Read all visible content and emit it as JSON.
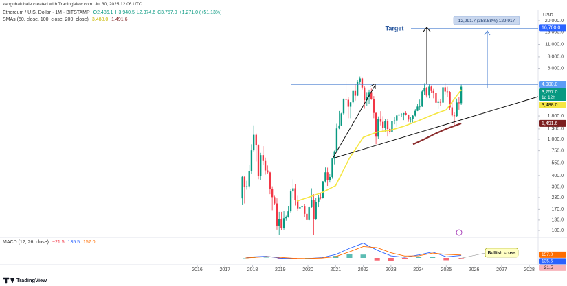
{
  "header": {
    "credit": "kanguhalubale created with TradingView.com, Jul 30, 2025 12:06 UTC"
  },
  "chart_data": {
    "type": "candlestick",
    "title": "Ethereum / U.S. Dollar · 1M · BITSTAMP",
    "ohlc_legend": [
      "O2,486.1",
      "H3,940.5",
      "L2,374.6",
      "C3,757.0",
      "+1,271.0 (+51.13%)"
    ],
    "currency": "USD",
    "log_scale": true,
    "xlim": [
      2008.87,
      2028.32
    ],
    "xticks": [
      2016,
      2017,
      2018,
      2019,
      2020,
      2021,
      2022,
      2023,
      2024,
      2025,
      2026,
      2027,
      2028
    ],
    "ylim": [
      85.6,
      23770
    ],
    "yticks": [
      {
        "value": 20000,
        "label": "20,000.0"
      },
      {
        "value": 15000,
        "label": "15,000.0"
      },
      {
        "value": 11000,
        "label": "11,000.0"
      },
      {
        "value": 8000,
        "label": "8,000.0"
      },
      {
        "value": 6000,
        "label": "6,000.0"
      },
      {
        "value": 1800,
        "label": "1,800.0"
      },
      {
        "value": 1300,
        "label": "1,300.0"
      },
      {
        "value": 1000,
        "label": "1,000.0"
      },
      {
        "value": 750,
        "label": "750.0"
      },
      {
        "value": 550,
        "label": "550.0"
      },
      {
        "value": 400,
        "label": "400.0"
      },
      {
        "value": 300,
        "label": "300.0"
      },
      {
        "value": 230,
        "label": "230.0"
      },
      {
        "value": 170,
        "label": "170.0"
      },
      {
        "value": 130,
        "label": "130.0"
      },
      {
        "value": 100,
        "label": "100.0"
      }
    ],
    "up_color": "#089981",
    "down_color": "#f23645",
    "x": [
      2017.63,
      2017.71,
      2017.79,
      2017.88,
      2017.96,
      2018.04,
      2018.13,
      2018.21,
      2018.29,
      2018.38,
      2018.46,
      2018.54,
      2018.63,
      2018.71,
      2018.79,
      2018.88,
      2018.96,
      2019.04,
      2019.13,
      2019.21,
      2019.29,
      2019.38,
      2019.46,
      2019.54,
      2019.63,
      2019.71,
      2019.79,
      2019.88,
      2019.96,
      2020.04,
      2020.13,
      2020.21,
      2020.29,
      2020.38,
      2020.46,
      2020.54,
      2020.63,
      2020.71,
      2020.79,
      2020.88,
      2020.96,
      2021.04,
      2021.13,
      2021.21,
      2021.29,
      2021.38,
      2021.46,
      2021.54,
      2021.63,
      2021.71,
      2021.79,
      2021.88,
      2021.96,
      2022.04,
      2022.13,
      2022.21,
      2022.29,
      2022.38,
      2022.46,
      2022.54,
      2022.63,
      2022.71,
      2022.79,
      2022.88,
      2022.96,
      2023.04,
      2023.13,
      2023.21,
      2023.29,
      2023.38,
      2023.46,
      2023.54,
      2023.63,
      2023.71,
      2023.79,
      2023.88,
      2023.96,
      2024.04,
      2024.13,
      2024.21,
      2024.29,
      2024.38,
      2024.46,
      2024.54,
      2024.63,
      2024.71,
      2024.79,
      2024.88,
      2024.96,
      2025.04,
      2025.13,
      2025.21,
      2025.29,
      2025.38,
      2025.46,
      2025.54
    ],
    "open": [
      225,
      388,
      302,
      305,
      447,
      756,
      1118,
      855,
      396,
      670,
      577,
      455,
      433,
      283,
      232,
      198,
      113,
      133,
      107,
      136,
      141,
      162,
      268,
      290,
      218,
      172,
      180,
      183,
      152,
      130,
      180,
      218,
      133,
      206,
      231,
      226,
      345,
      434,
      360,
      386,
      614,
      737,
      1314,
      1417,
      1918,
      2773,
      2707,
      2275,
      2536,
      3433,
      3000,
      4288,
      4632,
      3683,
      2688,
      2922,
      3283,
      2730,
      1942,
      1067,
      1680,
      1554,
      1328,
      1572,
      1296,
      1196,
      1585,
      1605,
      1822,
      1870,
      1874,
      1934,
      1856,
      1645,
      1671,
      1815,
      2048,
      2282,
      2283,
      3340,
      3646,
      3013,
      3763,
      3433,
      3232,
      2513,
      2603,
      2518,
      3703,
      3332,
      3300,
      2237,
      1822,
      1794,
      2530,
      2486.1
    ],
    "high": [
      400,
      395,
      350,
      520,
      880,
      1420,
      1160,
      880,
      710,
      840,
      630,
      515,
      440,
      305,
      240,
      225,
      160,
      160,
      165,
      145,
      185,
      285,
      365,
      320,
      240,
      225,
      198,
      194,
      155,
      185,
      290,
      250,
      228,
      245,
      256,
      348,
      490,
      488,
      420,
      624,
      752,
      1476,
      2040,
      1945,
      2798,
      4380,
      2900,
      2550,
      3470,
      4030,
      4460,
      4870,
      4780,
      3860,
      3280,
      3490,
      3580,
      2970,
      1980,
      1780,
      2030,
      1790,
      1660,
      1680,
      1350,
      1680,
      1740,
      1850,
      2140,
      1930,
      1940,
      2030,
      1870,
      1750,
      1860,
      2140,
      2450,
      2720,
      3480,
      4090,
      3730,
      3980,
      3880,
      3560,
      3480,
      2730,
      2770,
      3740,
      4110,
      3750,
      3400,
      2550,
      1960,
      2790,
      2880,
      3940.5
    ],
    "low": [
      190,
      198,
      280,
      290,
      420,
      720,
      570,
      365,
      360,
      520,
      410,
      420,
      250,
      167,
      190,
      102,
      90,
      100,
      102,
      128,
      138,
      157,
      228,
      188,
      163,
      152,
      160,
      140,
      117,
      127,
      176,
      90,
      130,
      180,
      220,
      224,
      334,
      308,
      335,
      370,
      530,
      718,
      1290,
      1400,
      1860,
      1720,
      1700,
      1700,
      2440,
      2650,
      2970,
      3990,
      3500,
      2160,
      2300,
      2450,
      2700,
      1700,
      880,
      1000,
      1420,
      1220,
      1190,
      1070,
      1150,
      1190,
      1460,
      1370,
      1770,
      1760,
      1620,
      1820,
      1550,
      1530,
      1520,
      1780,
      2030,
      2100,
      2260,
      3050,
      2860,
      2820,
      3240,
      2810,
      2120,
      2150,
      2300,
      2360,
      3100,
      2920,
      2080,
      1750,
      1380,
      1750,
      2110,
      2374.6
    ],
    "close": [
      388,
      302,
      305,
      447,
      756,
      1118,
      855,
      396,
      670,
      577,
      455,
      433,
      283,
      232,
      198,
      113,
      133,
      107,
      136,
      141,
      162,
      268,
      290,
      218,
      172,
      180,
      183,
      152,
      130,
      180,
      218,
      133,
      206,
      231,
      226,
      345,
      434,
      360,
      386,
      614,
      737,
      1314,
      1417,
      1918,
      2773,
      2707,
      2275,
      2536,
      3433,
      3000,
      4288,
      4632,
      3683,
      2688,
      2922,
      3283,
      2730,
      1942,
      1067,
      1680,
      1554,
      1328,
      1572,
      1296,
      1196,
      1585,
      1605,
      1822,
      1870,
      1874,
      1934,
      1856,
      1645,
      1671,
      1815,
      2048,
      2282,
      2283,
      3340,
      3646,
      3013,
      3763,
      3433,
      3232,
      2513,
      2603,
      2518,
      3703,
      3332,
      3300,
      2237,
      1822,
      1794,
      2530,
      2486.1,
      3757
    ],
    "indicator_label": "SMAs (50, close, 100, close, 200, close)",
    "overlays": [
      {
        "color": "#f5e642",
        "x": [
          2019.6,
          2020.0,
          2020.5,
          2021.0,
          2021.5,
          2022.0,
          2022.5,
          2023.0,
          2023.5,
          2024.0,
          2024.5,
          2025.0,
          2025.54
        ],
        "values": [
          210,
          230,
          260,
          310,
          620,
          1050,
          1200,
          1260,
          1400,
          1600,
          1850,
          2100,
          3488
        ]
      },
      {
        "color": "#8b2e2e",
        "x": [
          2023.8,
          2024.2,
          2024.6,
          2025.0,
          2025.54
        ],
        "values": [
          880,
          1000,
          1150,
          1300,
          1491.6
        ]
      }
    ],
    "price_labels": [
      {
        "value": 16700,
        "label": "16,700.0",
        "color": "#2962ff",
        "text_color": "#ffffff"
      },
      {
        "value": 4000,
        "label": "4,000.0",
        "color": "#5b9cf6",
        "text_color": "#ffffff"
      },
      {
        "value": 3757,
        "label": "3,757.0",
        "sub": "1d 12h",
        "color": "#089981",
        "text_color": "#ffffff"
      },
      {
        "value": 3488,
        "label": "3,488.0",
        "color": "#f5e642",
        "text_color": "#000000"
      },
      {
        "value": 1491.6,
        "label": "1,491.6",
        "color": "#7b1f1f",
        "text_color": "#ffffff"
      }
    ],
    "annotations": {
      "target": "Target",
      "measure": "12,991.7 (358.58%) 129,917",
      "bullish": "Bullish cross"
    },
    "macd": {
      "label": "MACD (12, 26, close)",
      "ylim": [
        -300,
        900
      ],
      "x": [
        2017.75,
        2018.0,
        2018.5,
        2019.0,
        2019.5,
        2020.0,
        2020.5,
        2021.0,
        2021.5,
        2022.0,
        2022.5,
        2023.0,
        2023.5,
        2024.0,
        2024.5,
        2025.0,
        2025.54
      ],
      "macd": [
        0,
        60,
        90,
        -10,
        -40,
        -30,
        15,
        180,
        520,
        800,
        420,
        110,
        30,
        160,
        320,
        60,
        135.5
      ],
      "signal": [
        0,
        20,
        70,
        30,
        -20,
        -30,
        -5,
        70,
        330,
        620,
        560,
        280,
        100,
        110,
        260,
        190,
        157
      ],
      "histogram": [
        0,
        40,
        20,
        -40,
        -20,
        0,
        20,
        110,
        190,
        180,
        -140,
        -170,
        -70,
        50,
        60,
        -130,
        -21.5
      ],
      "macd_color": "#2962ff",
      "signal_color": "#ff6d00",
      "up_color": "#26a69a",
      "down_color": "#f23645",
      "axis_labels": [
        {
          "value": 157,
          "label": "157.0",
          "color": "#ff6d00"
        },
        {
          "value": 135.5,
          "label": "135.5",
          "color": "#2962ff"
        },
        {
          "value": -21.5,
          "label": "−21.5",
          "color": "#f7b3b9"
        }
      ]
    }
  },
  "footer": {
    "brand": "TradingView"
  }
}
